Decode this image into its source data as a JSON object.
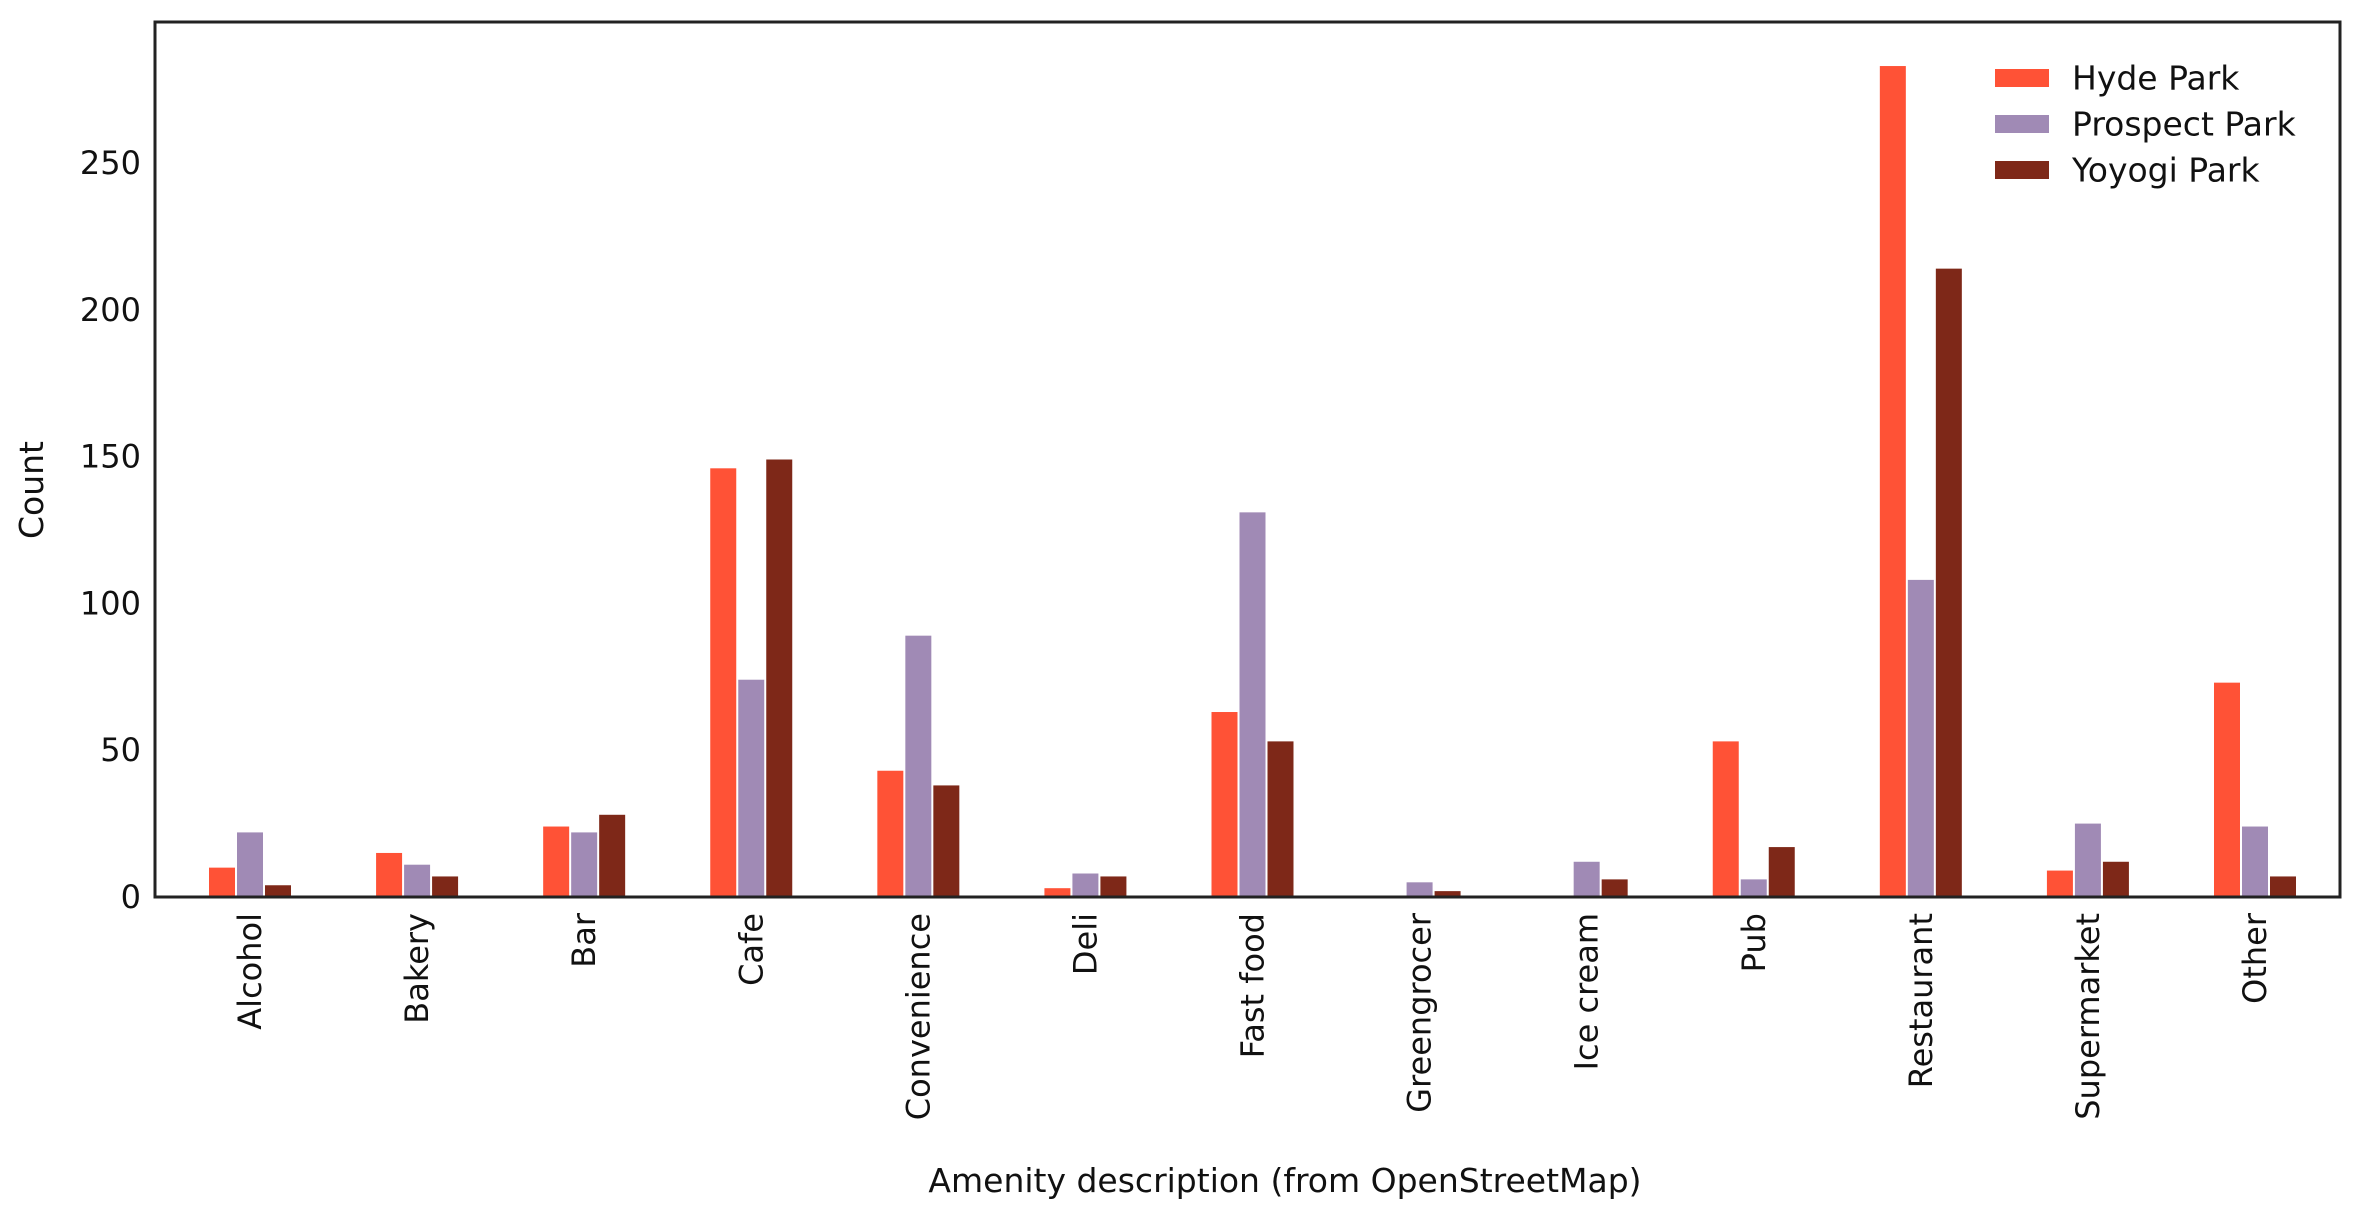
{
  "chart_data": {
    "type": "bar",
    "title": "",
    "xlabel": "Amenity description (from OpenStreetMap)",
    "ylabel": "Count",
    "ylim": [
      0,
      298
    ],
    "yticks": [
      0,
      50,
      100,
      150,
      200,
      250
    ],
    "grid": false,
    "legend_position": "top-right",
    "categories": [
      "Alcohol",
      "Bakery",
      "Bar",
      "Cafe",
      "Convenience",
      "Deli",
      "Fast food",
      "Greengrocer",
      "Ice cream",
      "Pub",
      "Restaurant",
      "Supermarket",
      "Other"
    ],
    "series": [
      {
        "name": "Hyde Park",
        "color": "#ff5236",
        "values": [
          10,
          15,
          24,
          146,
          43,
          3,
          63,
          0,
          0,
          53,
          283,
          9,
          73
        ]
      },
      {
        "name": "Prospect Park",
        "color": "#a08ab5",
        "values": [
          22,
          11,
          22,
          74,
          89,
          8,
          131,
          5,
          12,
          6,
          108,
          25,
          24
        ]
      },
      {
        "name": "Yoyogi Park",
        "color": "#7e2818",
        "values": [
          4,
          7,
          28,
          149,
          38,
          7,
          53,
          2,
          6,
          17,
          214,
          12,
          7
        ]
      }
    ]
  }
}
